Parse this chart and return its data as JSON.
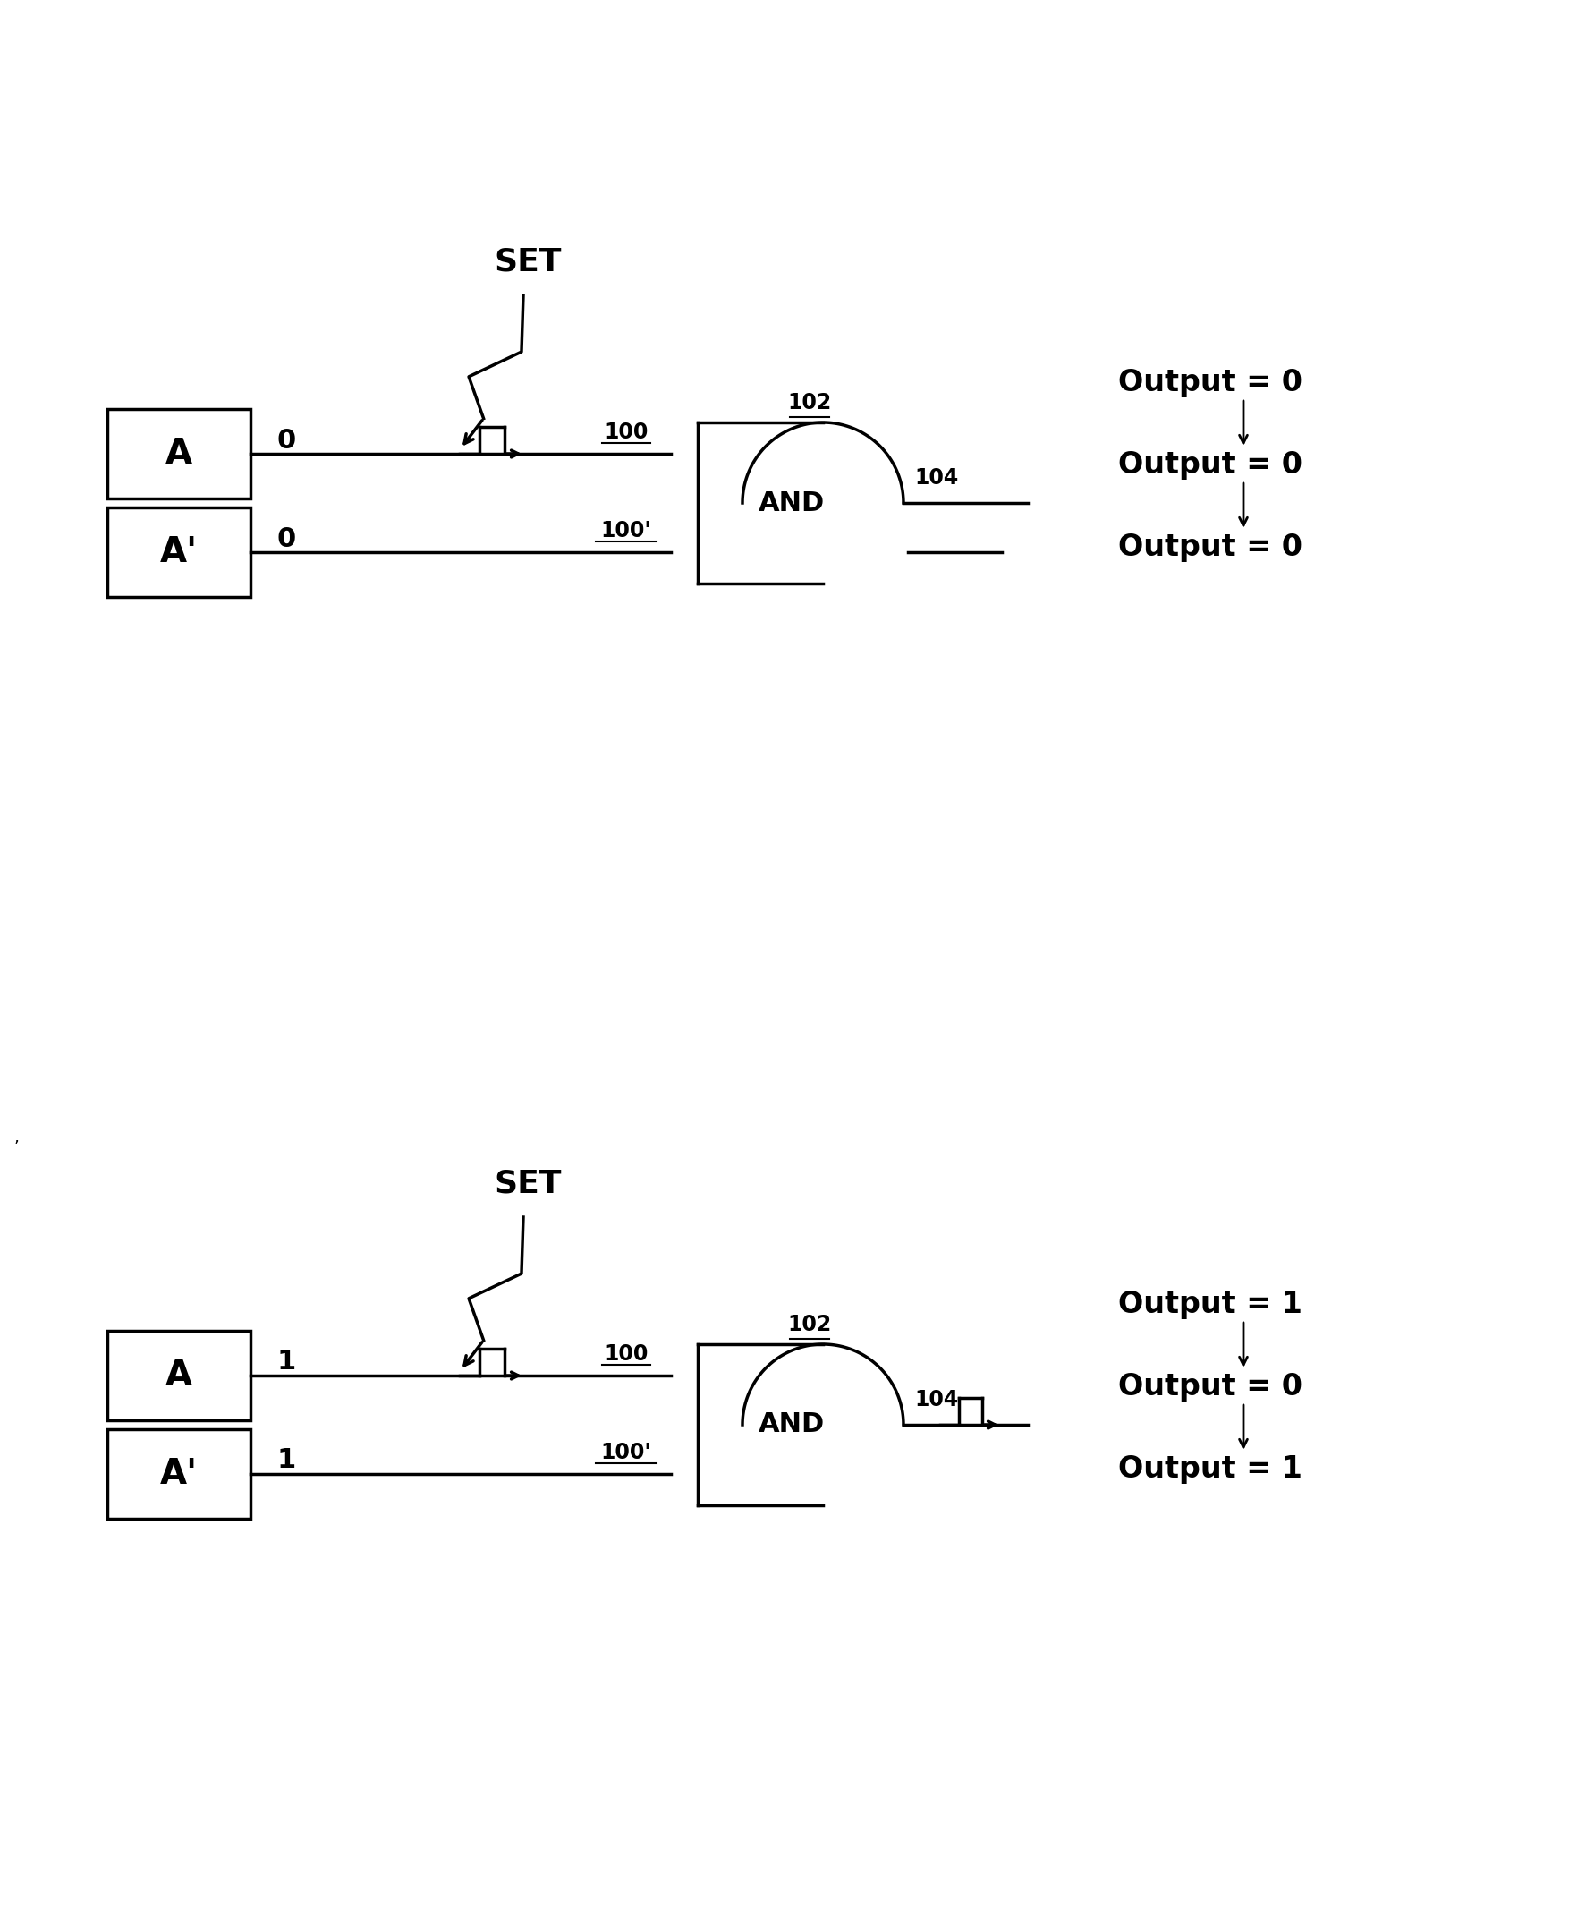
{
  "bg_color": "#ffffff",
  "diagram1": {
    "input_a_label": "A",
    "input_aprime_label": "A'",
    "input_a_value": "0",
    "input_aprime_value": "0",
    "set_label": "SET",
    "gate_label": "AND",
    "wire_top_label": "100",
    "wire_bot_label": "100'",
    "gate_top_label": "102",
    "gate_out_label": "104",
    "output_lines": [
      "Output = 0",
      "Output = 0",
      "Output = 0"
    ],
    "has_output_glitch": false
  },
  "diagram2": {
    "input_a_label": "A",
    "input_aprime_label": "A'",
    "input_a_value": "1",
    "input_aprime_value": "1",
    "set_label": "SET",
    "gate_label": "AND",
    "wire_top_label": "100",
    "wire_bot_label": "100'",
    "gate_top_label": "102",
    "gate_out_label": "104",
    "output_lines": [
      "Output = 1",
      "Output = 0",
      "Output = 1"
    ],
    "has_output_glitch": true
  }
}
